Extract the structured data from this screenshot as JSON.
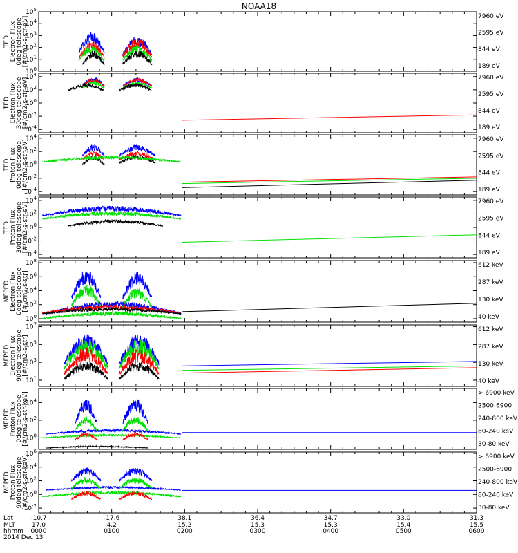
{
  "title": "NOAA18",
  "colors": {
    "blue": "#0000ff",
    "red": "#ff0000",
    "green": "#00e000",
    "black": "#000000",
    "magenta": "#ff00ff"
  },
  "footer": {
    "row_labels": [
      "Lat",
      "MLT",
      "hhmm",
      "2014 Dec 13"
    ],
    "columns": [
      {
        "lat": "-10.7",
        "mlt": "17.0",
        "hhmm": "0000"
      },
      {
        "lat": "-17.6",
        "mlt": "4.2",
        "hhmm": "0100"
      },
      {
        "lat": "38.1",
        "mlt": "15.2",
        "hhmm": "0200"
      },
      {
        "lat": "36.4",
        "mlt": "15.3",
        "hhmm": "0300"
      },
      {
        "lat": "34.7",
        "mlt": "15.3",
        "hhmm": "0400"
      },
      {
        "lat": "33.0",
        "mlt": "15.4",
        "hhmm": "0500"
      },
      {
        "lat": "31.3",
        "mlt": "15.5",
        "hhmm": "0600"
      }
    ]
  },
  "chart_data": [
    {
      "type": "line",
      "ylabel": [
        "TED",
        "Electron Flux",
        "0deg telescope",
        "[#/cm2-s-str-eV]"
      ],
      "y_ticks": [
        "10^0",
        "10^1",
        "10^2",
        "10^3",
        "10^4",
        "10^5"
      ],
      "ylim_log": [
        0,
        5
      ],
      "xlim_hours": [
        0,
        6
      ],
      "legend": [
        {
          "label": "7960 eV",
          "color": "black"
        },
        {
          "label": "2595 eV",
          "color": "red"
        },
        {
          "label": "844 eV",
          "color": "green"
        },
        {
          "label": "189 eV",
          "color": "blue"
        }
      ],
      "series": [
        {
          "color": "blue",
          "bursts": [
            [
              0.55,
              0.9,
              1.2,
              3.3
            ],
            [
              1.15,
              1.55,
              1.0,
              3.0
            ]
          ]
        },
        {
          "color": "red",
          "bursts": [
            [
              0.55,
              0.9,
              0.8,
              2.6
            ],
            [
              1.15,
              1.55,
              0.8,
              2.8
            ]
          ]
        },
        {
          "color": "green",
          "bursts": [
            [
              0.55,
              0.9,
              0.6,
              2.2
            ],
            [
              1.15,
              1.55,
              0.6,
              2.2
            ]
          ]
        },
        {
          "color": "black",
          "bursts": [
            [
              0.6,
              0.9,
              0.3,
              1.7
            ],
            [
              1.15,
              1.55,
              0.3,
              1.8
            ]
          ]
        }
      ],
      "tails": []
    },
    {
      "type": "line",
      "ylabel": [
        "TED",
        "Electron Flux",
        "30deg telescope",
        "[#/cm2-s-str-eV]"
      ],
      "y_ticks": [
        "10^-4",
        "10^-2",
        "10^0",
        "10^2",
        "10^4"
      ],
      "ylim_log": [
        -4.5,
        4.5
      ],
      "xlim_hours": [
        0,
        6
      ],
      "legend": [
        {
          "label": "7960 eV",
          "color": "black"
        },
        {
          "label": "2595 eV",
          "color": "red"
        },
        {
          "label": "844 eV",
          "color": "green"
        },
        {
          "label": "189 eV",
          "color": "blue"
        }
      ],
      "series": [
        {
          "color": "blue",
          "bursts": [
            [
              0.6,
              0.9,
              2.3,
              4.0
            ],
            [
              1.15,
              1.55,
              2.3,
              3.8
            ]
          ]
        },
        {
          "color": "red",
          "bursts": [
            [
              0.6,
              0.9,
              2.3,
              3.8
            ],
            [
              1.15,
              1.55,
              2.3,
              3.8
            ]
          ]
        },
        {
          "color": "green",
          "bursts": [
            [
              0.6,
              0.9,
              2.0,
              3.3
            ],
            [
              1.15,
              1.55,
              2.0,
              3.3
            ]
          ]
        },
        {
          "color": "black",
          "bursts": [
            [
              0.4,
              0.9,
              1.6,
              3.0
            ],
            [
              1.1,
              1.55,
              1.6,
              3.0
            ]
          ]
        }
      ],
      "tails": [
        {
          "color": "red",
          "start": [
            1.96,
            -2.6
          ],
          "end": [
            6.0,
            -1.8
          ]
        }
      ]
    },
    {
      "type": "line",
      "ylabel": [
        "TED",
        "Proton Flux",
        "0deg telescope",
        "[#/cm2-s-str-eV]"
      ],
      "y_ticks": [
        "10^-4",
        "10^-2",
        "10^0",
        "10^2",
        "10^4"
      ],
      "ylim_log": [
        -4.5,
        4.5
      ],
      "xlim_hours": [
        0,
        6
      ],
      "legend": [
        {
          "label": "7960 eV",
          "color": "black"
        },
        {
          "label": "2595 eV",
          "color": "red"
        },
        {
          "label": "844 eV",
          "color": "green"
        },
        {
          "label": "189 eV",
          "color": "blue"
        }
      ],
      "series": [
        {
          "color": "blue",
          "bursts": [
            [
              0.6,
              0.9,
              1.0,
              3.0
            ],
            [
              1.1,
              1.6,
              1.0,
              3.0
            ]
          ]
        },
        {
          "color": "red",
          "bursts": [
            [
              0.6,
              0.9,
              0.5,
              2.0
            ],
            [
              1.1,
              1.6,
              0.5,
              2.0
            ]
          ]
        },
        {
          "color": "black",
          "bursts": [
            [
              0.6,
              0.9,
              -0.3,
              1.5
            ],
            [
              1.1,
              1.6,
              0.0,
              1.5
            ]
          ]
        },
        {
          "color": "green",
          "bursts": [
            [
              0.05,
              1.95,
              0.2,
              1.4
            ]
          ]
        }
      ],
      "tails": [
        {
          "color": "red",
          "start": [
            1.96,
            -2.6
          ],
          "end": [
            6.0,
            -1.8
          ]
        },
        {
          "color": "green",
          "start": [
            1.96,
            -2.8
          ],
          "end": [
            6.0,
            -2.0
          ]
        },
        {
          "color": "black",
          "start": [
            1.96,
            -3.4
          ],
          "end": [
            6.0,
            -2.3
          ]
        }
      ]
    },
    {
      "type": "line",
      "ylabel": [
        "TED",
        "Proton Flux",
        "30deg telescope",
        "[#/cm2-s-str-eV]"
      ],
      "y_ticks": [
        "10^-4",
        "10^-2",
        "10^0",
        "10^2",
        "10^4"
      ],
      "ylim_log": [
        -4.5,
        4.5
      ],
      "xlim_hours": [
        0,
        6
      ],
      "legend": [
        {
          "label": "7960 eV",
          "color": "black"
        },
        {
          "label": "2595 eV",
          "color": "red"
        },
        {
          "label": "844 eV",
          "color": "green"
        },
        {
          "label": "189 eV",
          "color": "blue"
        }
      ],
      "series": [
        {
          "color": "blue",
          "bursts": [
            [
              0.05,
              1.95,
              1.4,
              3.2
            ]
          ]
        },
        {
          "color": "green",
          "bursts": [
            [
              0.05,
              1.95,
              1.0,
              2.4
            ]
          ]
        },
        {
          "color": "black",
          "bursts": [
            [
              0.4,
              1.7,
              0.0,
              1.2
            ]
          ]
        }
      ],
      "tails": [
        {
          "color": "blue",
          "start": [
            1.96,
            2.0
          ],
          "end": [
            6.0,
            2.0
          ]
        },
        {
          "color": "green",
          "start": [
            1.96,
            -2.2
          ],
          "end": [
            6.0,
            -1.1
          ]
        }
      ]
    },
    {
      "type": "line",
      "ylabel": [
        "MEPED",
        "Electron Flux",
        "0deg telescope",
        "[#/cm2-s-str]"
      ],
      "y_ticks": [
        "10^0",
        "10^2",
        "10^4",
        "10^6",
        "10^8"
      ],
      "ylim_log": [
        -0.5,
        8.3
      ],
      "xlim_hours": [
        0,
        6
      ],
      "legend": [
        {
          "label": "612 keV",
          "color": "black"
        },
        {
          "label": "287 keV",
          "color": "red"
        },
        {
          "label": "130 keV",
          "color": "green"
        },
        {
          "label": "40 keV",
          "color": "blue"
        }
      ],
      "series": [
        {
          "color": "blue",
          "bursts": [
            [
              0.1,
              1.95,
              0.3,
              2.5
            ],
            [
              0.45,
              0.85,
              2.0,
              7.2
            ],
            [
              1.15,
              1.55,
              2.0,
              6.8
            ]
          ]
        },
        {
          "color": "green",
          "bursts": [
            [
              0.05,
              1.95,
              -0.2,
              1.0
            ],
            [
              0.45,
              0.85,
              1.0,
              5.0
            ],
            [
              1.15,
              1.55,
              1.0,
              4.5
            ]
          ]
        },
        {
          "color": "red",
          "bursts": [
            [
              0.05,
              1.95,
              0.5,
              2.0
            ]
          ]
        },
        {
          "color": "black",
          "bursts": [
            [
              0.05,
              1.95,
              0.5,
              1.6
            ]
          ]
        }
      ],
      "tails": [
        {
          "color": "black",
          "start": [
            1.96,
            1.0
          ],
          "end": [
            6.0,
            2.2
          ]
        }
      ]
    },
    {
      "type": "line",
      "ylabel": [
        "MEPED",
        "Electron Flux",
        "90deg telescope",
        "[#/cm2-s-str]"
      ],
      "y_ticks": [
        "10^1",
        "10^3",
        "10^5",
        "10^7"
      ],
      "ylim_log": [
        0.3,
        7.2
      ],
      "xlim_hours": [
        0,
        6
      ],
      "legend": [
        {
          "label": "612 keV",
          "color": "black"
        },
        {
          "label": "287 keV",
          "color": "red"
        },
        {
          "label": "130 keV",
          "color": "green"
        },
        {
          "label": "40 keV",
          "color": "blue"
        }
      ],
      "series": [
        {
          "color": "blue",
          "bursts": [
            [
              0.35,
              0.95,
              2.0,
              6.3
            ],
            [
              1.1,
              1.65,
              2.0,
              6.3
            ]
          ]
        },
        {
          "color": "green",
          "bursts": [
            [
              0.35,
              0.95,
              1.5,
              5.7
            ],
            [
              1.1,
              1.65,
              1.5,
              5.7
            ]
          ]
        },
        {
          "color": "red",
          "bursts": [
            [
              0.35,
              0.95,
              1.0,
              4.7
            ],
            [
              1.1,
              1.65,
              1.0,
              4.5
            ]
          ]
        },
        {
          "color": "black",
          "bursts": [
            [
              0.35,
              0.95,
              0.6,
              3.2
            ],
            [
              1.1,
              1.65,
              0.6,
              3.2
            ]
          ]
        }
      ],
      "tails": [
        {
          "color": "blue",
          "start": [
            1.96,
            2.6
          ],
          "end": [
            6.0,
            3.1
          ]
        },
        {
          "color": "green",
          "start": [
            1.96,
            2.1
          ],
          "end": [
            6.0,
            2.6
          ]
        },
        {
          "color": "red",
          "start": [
            1.96,
            1.8
          ],
          "end": [
            6.0,
            2.4
          ]
        }
      ]
    },
    {
      "type": "line",
      "ylabel": [
        "MEPED",
        "Proton Flux",
        "0deg telescope",
        "[#/cm2-s-str-keV]"
      ],
      "y_ticks": [
        "10^0",
        "10^2",
        "10^4"
      ],
      "ylim_log": [
        -1.3,
        5.6
      ],
      "xlim_hours": [
        0,
        6
      ],
      "legend": [
        {
          "label": "> 6900 keV",
          "color": "magenta"
        },
        {
          "label": "2500-6900",
          "color": "black"
        },
        {
          "label": "240-800 keV",
          "color": "red"
        },
        {
          "label": "80-240 keV",
          "color": "green"
        },
        {
          "label": "30-80 keV",
          "color": "blue"
        }
      ],
      "series": [
        {
          "color": "blue",
          "bursts": [
            [
              0.1,
              1.95,
              0.3,
              1.0
            ],
            [
              0.5,
              0.8,
              1.0,
              4.5
            ],
            [
              1.15,
              1.5,
              1.0,
              4.5
            ]
          ]
        },
        {
          "color": "green",
          "bursts": [
            [
              0.05,
              1.95,
              -0.1,
              0.4
            ],
            [
              0.5,
              0.8,
              0.4,
              2.5
            ],
            [
              1.15,
              1.5,
              0.4,
              2.5
            ]
          ]
        },
        {
          "color": "red",
          "bursts": [
            [
              0.5,
              0.8,
              -0.4,
              0.6
            ],
            [
              1.15,
              1.5,
              -0.4,
              0.6
            ]
          ]
        },
        {
          "color": "black",
          "bursts": [
            [
              0.1,
              1.5,
              -1.2,
              -0.9
            ]
          ]
        }
      ],
      "tails": [
        {
          "color": "blue",
          "start": [
            1.96,
            0.6
          ],
          "end": [
            6.0,
            0.6
          ]
        }
      ]
    },
    {
      "type": "line",
      "ylabel": [
        "MEPED",
        "Proton Flux",
        "90deg telescope",
        "[#/cm2-s-str-keV]"
      ],
      "y_ticks": [
        "10^-2",
        "10^0",
        "10^2",
        "10^4",
        "10^6"
      ],
      "ylim_log": [
        -2.7,
        6.2
      ],
      "xlim_hours": [
        0,
        6
      ],
      "legend": [
        {
          "label": "> 6900 keV",
          "color": "magenta"
        },
        {
          "label": "2500-6900",
          "color": "black"
        },
        {
          "label": "240-800 keV",
          "color": "red"
        },
        {
          "label": "80-240 keV",
          "color": "green"
        },
        {
          "label": "30-80 keV",
          "color": "blue"
        }
      ],
      "series": [
        {
          "color": "blue",
          "bursts": [
            [
              0.1,
              1.95,
              0.5,
              1.2
            ],
            [
              0.45,
              0.85,
              1.5,
              4.0
            ],
            [
              1.1,
              1.55,
              1.5,
              4.0
            ]
          ]
        },
        {
          "color": "green",
          "bursts": [
            [
              0.05,
              1.95,
              -0.5,
              0.5
            ],
            [
              0.45,
              0.85,
              0.5,
              2.5
            ],
            [
              1.1,
              1.55,
              0.5,
              2.5
            ]
          ]
        },
        {
          "color": "red",
          "bursts": [
            [
              0.45,
              0.85,
              -1.0,
              0.5
            ],
            [
              1.1,
              1.55,
              -1.0,
              0.5
            ]
          ]
        }
      ],
      "tails": [
        {
          "color": "blue",
          "start": [
            1.96,
            0.6
          ],
          "end": [
            6.0,
            0.6
          ]
        }
      ]
    }
  ]
}
